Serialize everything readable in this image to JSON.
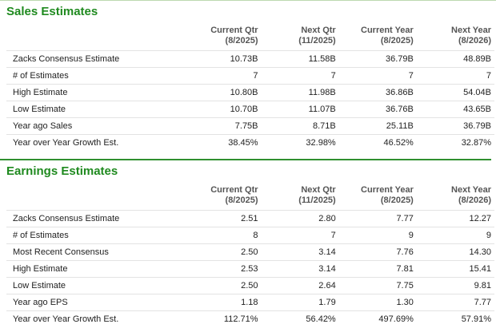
{
  "sections": [
    {
      "title": "Sales Estimates",
      "columns": [
        {
          "label": "Current Qtr",
          "period": "(8/2025)"
        },
        {
          "label": "Next Qtr",
          "period": "(11/2025)"
        },
        {
          "label": "Current Year",
          "period": "(8/2025)"
        },
        {
          "label": "Next Year",
          "period": "(8/2026)"
        }
      ],
      "rows": [
        {
          "label": "Zacks Consensus Estimate",
          "values": [
            "10.73B",
            "11.58B",
            "36.79B",
            "48.89B"
          ]
        },
        {
          "label": "# of Estimates",
          "values": [
            "7",
            "7",
            "7",
            "7"
          ]
        },
        {
          "label": "High Estimate",
          "values": [
            "10.80B",
            "11.98B",
            "36.86B",
            "54.04B"
          ]
        },
        {
          "label": "Low Estimate",
          "values": [
            "10.70B",
            "11.07B",
            "36.76B",
            "43.65B"
          ]
        },
        {
          "label": "Year ago Sales",
          "values": [
            "7.75B",
            "8.71B",
            "25.11B",
            "36.79B"
          ]
        },
        {
          "label": "Year over Year Growth Est.",
          "values": [
            "38.45%",
            "32.98%",
            "46.52%",
            "32.87%"
          ]
        }
      ]
    },
    {
      "title": "Earnings Estimates",
      "columns": [
        {
          "label": "Current Qtr",
          "period": "(8/2025)"
        },
        {
          "label": "Next Qtr",
          "period": "(11/2025)"
        },
        {
          "label": "Current Year",
          "period": "(8/2025)"
        },
        {
          "label": "Next Year",
          "period": "(8/2026)"
        }
      ],
      "rows": [
        {
          "label": "Zacks Consensus Estimate",
          "values": [
            "2.51",
            "2.80",
            "7.77",
            "12.27"
          ]
        },
        {
          "label": "# of Estimates",
          "values": [
            "8",
            "7",
            "9",
            "9"
          ]
        },
        {
          "label": "Most Recent Consensus",
          "values": [
            "2.50",
            "3.14",
            "7.76",
            "14.30"
          ]
        },
        {
          "label": "High Estimate",
          "values": [
            "2.53",
            "3.14",
            "7.81",
            "15.41"
          ]
        },
        {
          "label": "Low Estimate",
          "values": [
            "2.50",
            "2.64",
            "7.75",
            "9.81"
          ]
        },
        {
          "label": "Year ago EPS",
          "values": [
            "1.18",
            "1.79",
            "1.30",
            "7.77"
          ]
        },
        {
          "label": "Year over Year Growth Est.",
          "values": [
            "112.71%",
            "56.42%",
            "497.69%",
            "57.91%"
          ]
        }
      ]
    }
  ]
}
